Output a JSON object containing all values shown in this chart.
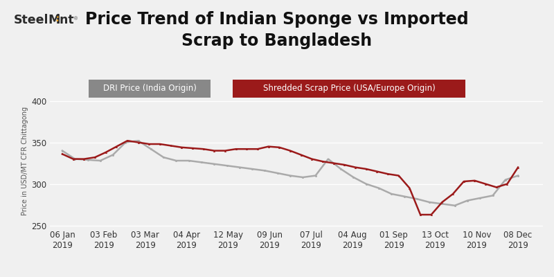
{
  "title": "Price Trend of Indian Sponge vs Imported\nScrap to Bangladesh",
  "ylabel": "Price in USD/MT CFR Chittagong",
  "background_color": "#f0f0f0",
  "plot_bg_color": "#f0f0f0",
  "dri_color": "#aaaaaa",
  "scrap_color": "#9b1a1a",
  "ylim": [
    248,
    408
  ],
  "yticks": [
    250,
    300,
    350,
    400
  ],
  "x_labels": [
    "06 Jan\n2019",
    "03 Feb\n2019",
    "03 Mar\n2019",
    "04 Apr\n2019",
    "12 May\n2019",
    "09 Jun\n2019",
    "07 Jul\n2019",
    "04 Aug\n2019",
    "01 Sep\n2019",
    "13 Oct\n2019",
    "10 Nov\n2019",
    "08 Dec\n2019"
  ],
  "x_positions": [
    0,
    1,
    2,
    3,
    4,
    5,
    6,
    7,
    8,
    9,
    10,
    11
  ],
  "dri_values": [
    340,
    330,
    329,
    328,
    335,
    350,
    352,
    342,
    332,
    328,
    328,
    326,
    324,
    322,
    320,
    318,
    316,
    313,
    310,
    308,
    310,
    330,
    318,
    308,
    300,
    295,
    288,
    285,
    282,
    278,
    276,
    274,
    280,
    283,
    286,
    305,
    310
  ],
  "scrap_values": [
    336,
    330,
    330,
    332,
    338,
    345,
    352,
    350,
    348,
    348,
    346,
    344,
    343,
    342,
    340,
    340,
    342,
    342,
    342,
    345,
    344,
    340,
    335,
    330,
    327,
    325,
    323,
    320,
    318,
    315,
    312,
    310,
    295,
    263,
    263,
    278,
    288,
    303,
    304,
    300,
    296,
    300,
    320
  ],
  "legend_dri_label": "DRI Price (India Origin)",
  "legend_scrap_label": "Shredded Scrap Price (USA/Europe Origin)",
  "legend_dri_bg": "#888888",
  "legend_scrap_bg": "#9b1a1a",
  "title_fontsize": 17,
  "tick_fontsize": 8.5
}
